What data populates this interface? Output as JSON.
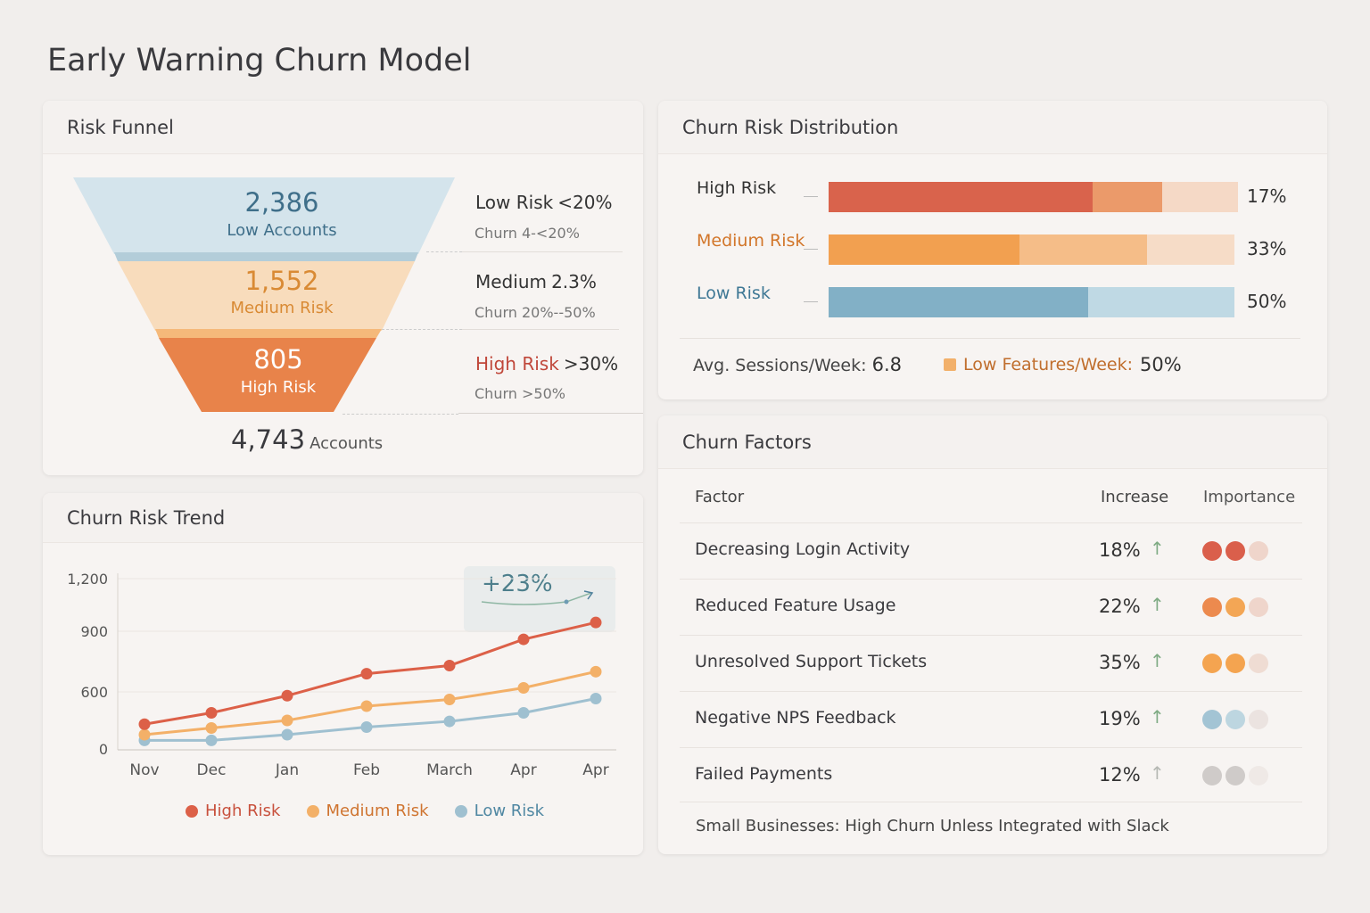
{
  "title": "Early Warning Churn Model",
  "funnel": {
    "title": "Risk Funnel",
    "stages": [
      {
        "value": "2,386",
        "label": "Low Accounts",
        "color": "#d4e4ec",
        "text": "#3f6f8a"
      },
      {
        "value": "1,552",
        "label": "Medium Risk",
        "color": "#f8dcbc",
        "text": "#d98a34"
      },
      {
        "value": "805",
        "label": "High Risk",
        "color": "#e8834a",
        "text": "#ffffff"
      }
    ],
    "legend": [
      {
        "name": "Low Risk",
        "threshold": "<20%",
        "sub": "Churn 4-<20%"
      },
      {
        "name": "Medium",
        "threshold": "2.3%",
        "sub": "Churn 20%--50%"
      },
      {
        "name": "High Risk",
        "threshold": ">30%",
        "sub": "Churn >50%"
      }
    ],
    "total": "4,743",
    "total_label": "Accounts"
  },
  "distribution": {
    "title": "Churn Risk Distribution",
    "rows": [
      {
        "label": "High Risk",
        "pct": "17%",
        "color": "#333",
        "segments": [
          64.5,
          17,
          18.5
        ],
        "colors": [
          "#d9634c",
          "#eb9a6a",
          "#f5d9c6"
        ]
      },
      {
        "label": "Medium Risk",
        "pct": "33%",
        "color": "#d2762a",
        "segments": [
          47,
          31.5,
          21.5
        ],
        "colors": [
          "#f2a050",
          "#f5bd88",
          "#f6dcc7"
        ]
      },
      {
        "label": "Low Risk",
        "pct": "50%",
        "color": "#3f7895",
        "segments": [
          64,
          36
        ],
        "colors": [
          "#82b0c6",
          "#bfd9e4"
        ]
      }
    ],
    "sessions_label": "Avg. Sessions/Week:",
    "sessions_value": "6.8",
    "features_label": "Low Features/Week:",
    "features_value": "50%",
    "features_color": "#f2b06a"
  },
  "trend": {
    "title": "Churn Risk Trend",
    "badge": "+23%",
    "chart_data": {
      "type": "line",
      "categories": [
        "Nov",
        "Dec",
        "Jan",
        "Feb",
        "March",
        "Apr",
        "Apr"
      ],
      "yticks": [
        0,
        600,
        900,
        1200
      ],
      "ylim": [
        0,
        1200
      ],
      "grid": true,
      "legend": "bottom",
      "series": [
        {
          "name": "High Risk",
          "color": "#dc6048",
          "values": [
            260,
            380,
            560,
            690,
            730,
            860,
            950
          ]
        },
        {
          "name": "Medium Risk",
          "color": "#f3b068",
          "values": [
            150,
            220,
            300,
            450,
            520,
            620,
            700
          ]
        },
        {
          "name": "Low Risk",
          "color": "#9fc0d0",
          "values": [
            90,
            90,
            150,
            230,
            290,
            380,
            530
          ]
        }
      ]
    }
  },
  "factors": {
    "title": "Churn Factors",
    "headers": [
      "Factor",
      "Increase",
      "Importance"
    ],
    "rows": [
      {
        "factor": "Decreasing Login Activity",
        "increase": "18%",
        "arrow": "#7fab84",
        "importance": 2,
        "dots": [
          "#da5f4b",
          "#da5f4b",
          "#efd5cb"
        ]
      },
      {
        "factor": "Reduced Feature Usage",
        "increase": "22%",
        "arrow": "#7fab84",
        "importance": 2,
        "dots": [
          "#ec8a4e",
          "#f3a655",
          "#efd5cb"
        ]
      },
      {
        "factor": "Unresolved Support Tickets",
        "increase": "35%",
        "arrow": "#7fab84",
        "importance": 2,
        "dots": [
          "#f4a450",
          "#f4a450",
          "#efdcd3"
        ]
      },
      {
        "factor": "Negative NPS Feedback",
        "increase": "19%",
        "arrow": "#7fab84",
        "importance": 2,
        "dots": [
          "#a3c4d4",
          "#bdd6e0",
          "#ebe3e0"
        ]
      },
      {
        "factor": "Failed Payments",
        "increase": "12%",
        "arrow": "#b5b8b3",
        "importance": 2,
        "dots": [
          "#cfcbc9",
          "#cfcbc9",
          "#efe9e6"
        ]
      }
    ],
    "footer": "Small Businesses: High Churn Unless Integrated with Slack"
  }
}
